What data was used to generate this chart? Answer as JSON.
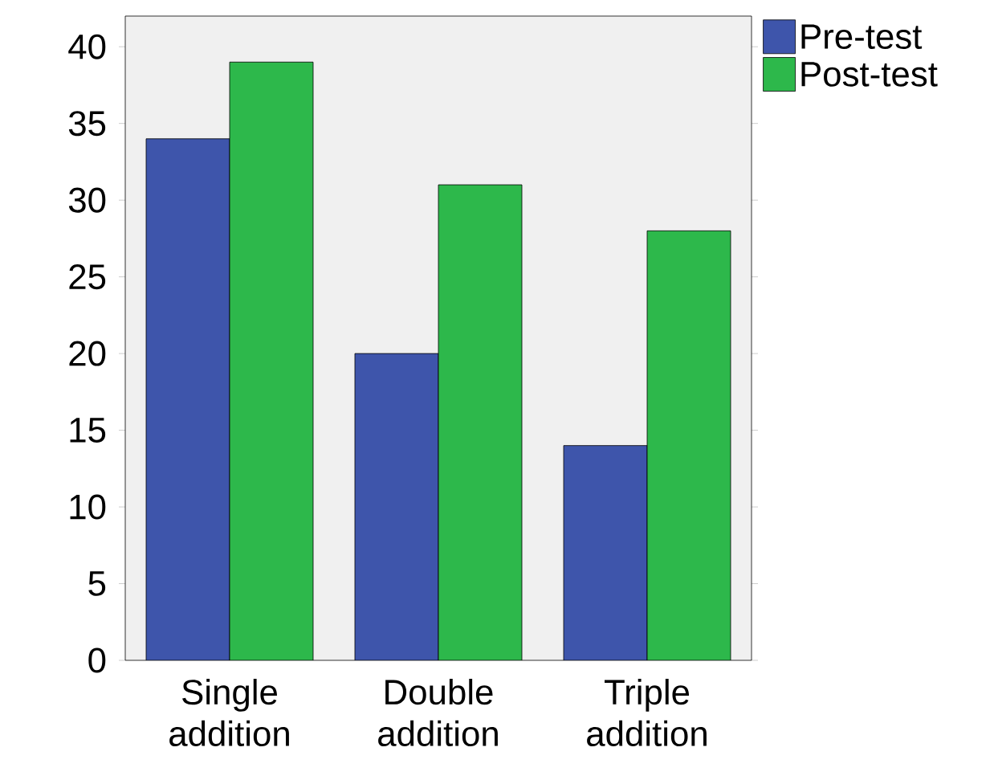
{
  "chart_data": {
    "type": "bar",
    "categories": [
      "Single addition",
      "Double addition",
      "Triple addition"
    ],
    "series": [
      {
        "name": "Pre-test",
        "color": "#3e55ab",
        "values": [
          34,
          20,
          14
        ]
      },
      {
        "name": "Post-test",
        "color": "#2db84b",
        "values": [
          39,
          31,
          28
        ]
      }
    ],
    "ylim": [
      0,
      42
    ],
    "yticks": [
      0,
      5,
      10,
      15,
      20,
      25,
      30,
      35,
      40
    ],
    "legend": "top right",
    "grid": false
  }
}
